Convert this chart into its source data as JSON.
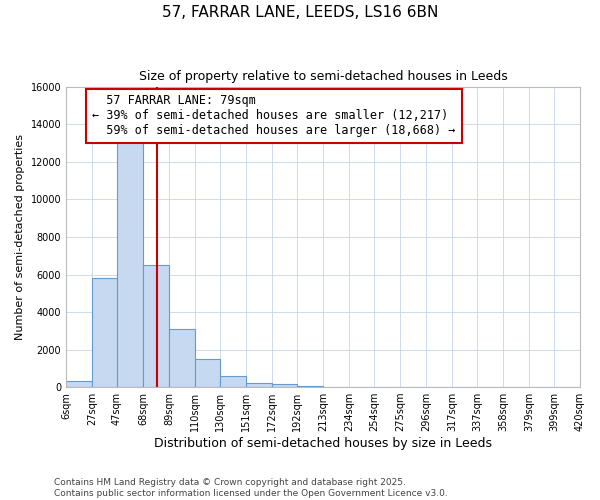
{
  "title": "57, FARRAR LANE, LEEDS, LS16 6BN",
  "subtitle": "Size of property relative to semi-detached houses in Leeds",
  "xlabel": "Distribution of semi-detached houses by size in Leeds",
  "ylabel": "Number of semi-detached properties",
  "bin_edges": [
    6,
    27,
    47,
    68,
    89,
    110,
    130,
    151,
    172,
    192,
    213,
    234,
    254,
    275,
    296,
    317,
    337,
    358,
    379,
    399,
    420
  ],
  "bin_labels": [
    "6sqm",
    "27sqm",
    "47sqm",
    "68sqm",
    "89sqm",
    "110sqm",
    "130sqm",
    "151sqm",
    "172sqm",
    "192sqm",
    "213sqm",
    "234sqm",
    "254sqm",
    "275sqm",
    "296sqm",
    "317sqm",
    "337sqm",
    "358sqm",
    "379sqm",
    "399sqm",
    "420sqm"
  ],
  "bar_heights": [
    300,
    5800,
    13100,
    6500,
    3100,
    1500,
    600,
    200,
    150,
    50,
    30,
    10,
    5,
    5,
    2,
    2,
    1,
    1,
    0,
    0
  ],
  "bar_color": "#c6d9f0",
  "bar_edgecolor": "#6699cc",
  "property_size": 79,
  "redline_color": "#cc0000",
  "annotation_text": "  57 FARRAR LANE: 79sqm  \n← 39% of semi-detached houses are smaller (12,217)\n  59% of semi-detached houses are larger (18,668) →",
  "annotation_box_edgecolor": "#cc0000",
  "annotation_fontsize": 8.5,
  "ylim": [
    0,
    16000
  ],
  "yticks": [
    0,
    2000,
    4000,
    6000,
    8000,
    10000,
    12000,
    14000,
    16000
  ],
  "grid_color": "#c8d4e8",
  "background_color": "#ffffff",
  "plot_bg_color": "#ffffff",
  "footer_text": "Contains HM Land Registry data © Crown copyright and database right 2025.\nContains public sector information licensed under the Open Government Licence v3.0.",
  "title_fontsize": 11,
  "subtitle_fontsize": 9,
  "xlabel_fontsize": 9,
  "ylabel_fontsize": 8,
  "tick_fontsize": 7,
  "footer_fontsize": 6.5
}
